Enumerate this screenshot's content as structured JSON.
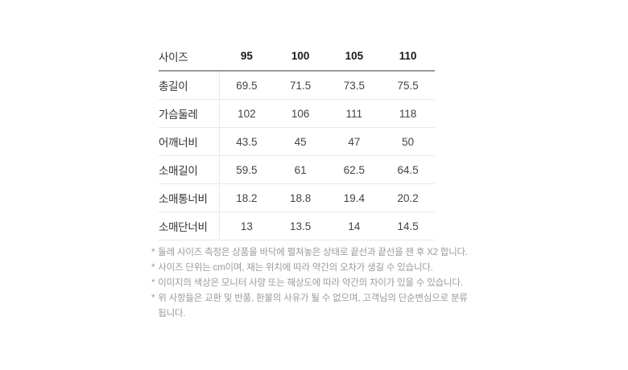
{
  "table": {
    "header": {
      "label": "사이즈",
      "sizes": [
        "95",
        "100",
        "105",
        "110"
      ]
    },
    "rows": [
      {
        "label": "총길이",
        "values": [
          "69.5",
          "71.5",
          "73.5",
          "75.5"
        ]
      },
      {
        "label": "가슴둘레",
        "values": [
          "102",
          "106",
          "111",
          "118"
        ]
      },
      {
        "label": "어깨너비",
        "values": [
          "43.5",
          "45",
          "47",
          "50"
        ]
      },
      {
        "label": "소매길이",
        "values": [
          "59.5",
          "61",
          "62.5",
          "64.5"
        ]
      },
      {
        "label": "소매통너비",
        "values": [
          "18.2",
          "18.8",
          "19.4",
          "20.2"
        ]
      },
      {
        "label": "소매단너비",
        "values": [
          "13",
          "13.5",
          "14",
          "14.5"
        ]
      }
    ]
  },
  "footnotes": {
    "bullet": "*",
    "lines": [
      "둘레 사이즈 측정은 상품을 바닥에 펼쳐놓은 상태로 끝선과 끝선을 잰 후 X2 합니다.",
      "사이즈 단위는 cm이며, 재는 위치에 따라 약간의 오차가 생길 수 있습니다.",
      "이미지의 색상은 모니터 사양 또는 해상도에 따라 약간의 차이가 있을 수 있습니다.",
      "위 사항들은 교환 및 반품, 환불의 사유가 될 수 없으며, 고객님의 단순변심으로 분류됩니다."
    ]
  },
  "colors": {
    "background": "#ffffff",
    "header_border": "#999999",
    "row_border": "#e9e9e9",
    "label_text": "#333333",
    "value_text": "#444444",
    "header_text": "#1a1a1a",
    "footnote_text": "#9a9a9a"
  }
}
